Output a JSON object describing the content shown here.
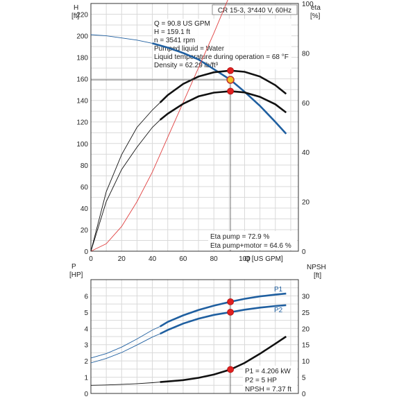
{
  "chart_data": [
    {
      "type": "line",
      "panel": "upper",
      "title": "CR 15-3, 3*440 V, 60Hz",
      "xlabel": "Q [US GPM]",
      "ylabel_left": "H",
      "ylabel_left_unit": "[ft]",
      "ylabel_right": "eta",
      "ylabel_right_unit": "[%]",
      "xlim": [
        0,
        135
      ],
      "ylim_left": [
        0,
        230
      ],
      "ylim_right": [
        0,
        100
      ],
      "x_ticks": [
        "0",
        "20",
        "40",
        "60",
        "80",
        "100"
      ],
      "y_left_ticks": [
        "0",
        "20",
        "40",
        "60",
        "80",
        "100",
        "120",
        "140",
        "160",
        "180",
        "200",
        "220"
      ],
      "y_right_ticks": [
        "0",
        "20",
        "40",
        "60",
        "80",
        "100"
      ],
      "grid": true,
      "info_lines": [
        "Q = 90.8 US GPM",
        "H = 159.1 ft",
        "n = 3541 rpm",
        "Pumped liquid = Water",
        "Liquid temperature during operation = 68 °F",
        "Density = 62.29 lb/ft³"
      ],
      "eta_annotations": [
        "Eta pump = 72.9 %",
        "Eta pump+motor = 64.6 %"
      ],
      "series": [
        {
          "axis": "left",
          "color": "#1f5fa0",
          "style": "thin-then-thick",
          "x": [
            0,
            10,
            20,
            30,
            40,
            50,
            60,
            70,
            80,
            90.8,
            100,
            110,
            120,
            127
          ],
          "y": [
            201,
            200,
            198,
            196,
            193,
            189,
            184,
            178,
            169,
            159.1,
            148,
            135,
            120,
            109
          ]
        },
        {
          "axis": "right",
          "color": "#e04040",
          "style": "thin",
          "x": [
            0,
            10,
            20,
            30,
            40,
            50,
            60,
            70,
            80,
            90.8
          ],
          "y": [
            0,
            3,
            10,
            20,
            32,
            46,
            60,
            74,
            88,
            104
          ]
        },
        {
          "axis": "right",
          "color": "#111111",
          "style": "thin-then-thick",
          "x": [
            0,
            10,
            20,
            30,
            40,
            45,
            50,
            60,
            70,
            80,
            90.8,
            100,
            110,
            120,
            127
          ],
          "y": [
            0,
            24,
            39,
            50,
            57,
            60,
            63,
            67.5,
            70.5,
            72.2,
            72.9,
            72.4,
            70.5,
            67,
            63.5
          ]
        },
        {
          "axis": "right",
          "color": "#111111",
          "style": "thin-then-thick",
          "x": [
            0,
            10,
            20,
            30,
            40,
            45,
            50,
            60,
            70,
            80,
            90.8,
            100,
            110,
            120,
            127
          ],
          "y": [
            0,
            20,
            33,
            42,
            50,
            53,
            55.5,
            59.5,
            62.5,
            64,
            64.6,
            64.1,
            62.3,
            59.3,
            56
          ]
        }
      ],
      "markers": [
        {
          "axis": "left",
          "x": 90.8,
          "y": 159.1,
          "color": "#f2c020",
          "ring": "#c03030"
        },
        {
          "axis": "right",
          "x": 90.8,
          "y": 72.9,
          "color": "#e02020"
        },
        {
          "axis": "right",
          "x": 90.8,
          "y": 64.6,
          "color": "#e02020"
        }
      ]
    },
    {
      "type": "line",
      "panel": "lower",
      "ylabel_left": "P",
      "ylabel_left_unit": "[HP]",
      "ylabel_right": "NPSH",
      "ylabel_right_unit": "[ft]",
      "xlim": [
        0,
        135
      ],
      "ylim_left": [
        0,
        7
      ],
      "ylim_right": [
        0,
        35
      ],
      "y_left_ticks": [
        "0",
        "1",
        "2",
        "3",
        "4",
        "5",
        "6"
      ],
      "y_right_ticks": [
        "0",
        "5",
        "10",
        "15",
        "20",
        "25",
        "30"
      ],
      "grid": true,
      "legend_labels": [
        "P1",
        "P2"
      ],
      "annotations": [
        "P1 = 4.206 kW",
        "P2 = 5 HP",
        "NPSH = 7.37 ft"
      ],
      "series": [
        {
          "name": "P1",
          "axis": "left",
          "color": "#1f5fa0",
          "style": "thin-then-thick",
          "x": [
            0,
            10,
            20,
            30,
            40,
            45,
            50,
            60,
            70,
            80,
            90.8,
            100,
            110,
            120,
            127
          ],
          "y": [
            2.18,
            2.45,
            2.85,
            3.35,
            3.9,
            4.12,
            4.4,
            4.8,
            5.13,
            5.4,
            5.64,
            5.82,
            5.97,
            6.08,
            6.14
          ]
        },
        {
          "name": "P2",
          "axis": "left",
          "color": "#1f5fa0",
          "style": "thin-then-thick",
          "x": [
            0,
            10,
            20,
            30,
            40,
            45,
            50,
            60,
            70,
            80,
            90.8,
            100,
            110,
            120,
            127
          ],
          "y": [
            1.88,
            2.15,
            2.52,
            2.98,
            3.47,
            3.67,
            3.9,
            4.3,
            4.6,
            4.83,
            5.0,
            5.15,
            5.28,
            5.38,
            5.43
          ]
        },
        {
          "name": "NPSH",
          "axis": "right",
          "color": "#111111",
          "style": "thin-then-thick",
          "x": [
            0,
            10,
            20,
            30,
            40,
            45,
            50,
            60,
            70,
            80,
            90.8,
            100,
            110,
            120,
            127
          ],
          "y": [
            2.5,
            2.6,
            2.8,
            3.0,
            3.3,
            3.5,
            3.7,
            4.1,
            4.8,
            5.8,
            7.37,
            9.4,
            12.2,
            15.3,
            17.5
          ]
        }
      ],
      "markers": [
        {
          "axis": "left",
          "x": 90.8,
          "y": 5.64,
          "color": "#e02020"
        },
        {
          "axis": "left",
          "x": 90.8,
          "y": 5.0,
          "color": "#e02020"
        },
        {
          "axis": "right",
          "x": 90.8,
          "y": 7.37,
          "color": "#e02020"
        }
      ]
    }
  ]
}
